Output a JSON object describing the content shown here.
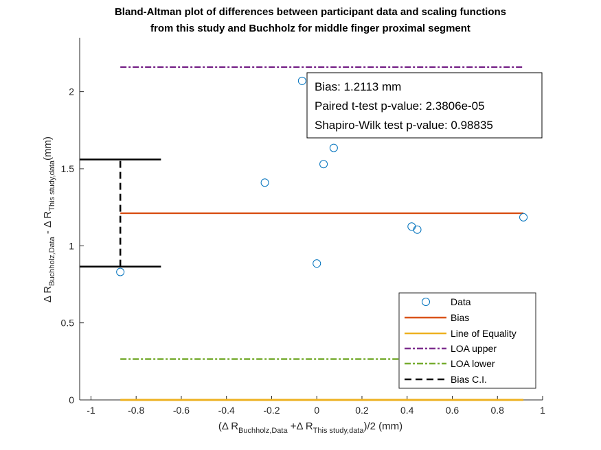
{
  "chart_data": {
    "type": "scatter",
    "title_lines": [
      "Bland-Altman plot of differences between participant data and scaling functions",
      "from this study and Buchholz for middle finger proximal segment"
    ],
    "xlabel": {
      "open": "(Δ R",
      "sub1": "Buchholz,Data",
      "mid": " +Δ R",
      "sub2": "This study,data",
      "close": ")/2 (mm)"
    },
    "ylabel": {
      "p1": "Δ R",
      "sub1": "Buchholz,Data",
      "p2": " - Δ R",
      "sub2": "This study,data",
      "p3": "(mm)"
    },
    "xlim": [
      -1.05,
      1.0
    ],
    "ylim": [
      0,
      2.35
    ],
    "xticks": [
      -1,
      -0.8,
      -0.6,
      -0.4,
      -0.2,
      0,
      0.2,
      0.4,
      0.6,
      0.8,
      1
    ],
    "xtick_labels": [
      "-1",
      "-0.8",
      "-0.6",
      "-0.4",
      "-0.2",
      "0",
      "0.2",
      "0.4",
      "0.6",
      "0.8",
      "1"
    ],
    "yticks": [
      0,
      0.5,
      1,
      1.5,
      2
    ],
    "ytick_labels": [
      "0",
      "0.5",
      "1",
      "1.5",
      "2"
    ],
    "grid": false,
    "series": [
      {
        "name": "Data",
        "kind": "markers",
        "color": "#0072BD",
        "x": [
          -0.87,
          -0.23,
          -0.065,
          0.0,
          0.03,
          0.075,
          0.42,
          0.445,
          0.915
        ],
        "y": [
          0.83,
          1.41,
          2.07,
          0.885,
          1.53,
          1.635,
          1.125,
          1.105,
          1.185
        ]
      },
      {
        "name": "Bias",
        "kind": "hline",
        "color": "#D95319",
        "y": 1.2113,
        "x": [
          -0.87,
          0.915
        ]
      },
      {
        "name": "Line of Equality",
        "kind": "hline",
        "color": "#EDB120",
        "y": 0,
        "x": [
          -0.87,
          0.915
        ]
      },
      {
        "name": "LOA upper",
        "kind": "hline-dashdot",
        "color": "#7E2F8E",
        "y": 2.16,
        "x": [
          -0.87,
          0.915
        ]
      },
      {
        "name": "LOA lower",
        "kind": "hline-dashdot",
        "color": "#77AC30",
        "y": 0.265,
        "x": [
          -0.87,
          0.915
        ]
      },
      {
        "name": "Bias C.I.",
        "kind": "errorbar",
        "color": "#000000",
        "x": -0.87,
        "y_low": 0.865,
        "y_high": 1.56,
        "cap_x_end": -0.69
      }
    ],
    "annotation": {
      "lines": [
        "Bias: 1.2113 mm",
        "Paired t-test p-value: 2.3806e-05",
        "Shapiro-Wilk test p-value: 0.98835"
      ],
      "position": "top-right"
    },
    "legend": {
      "position": "bottom-right",
      "entries": [
        "Data",
        "Bias",
        "Line of Equality",
        "LOA upper",
        "LOA lower",
        "Bias C.I."
      ]
    }
  }
}
